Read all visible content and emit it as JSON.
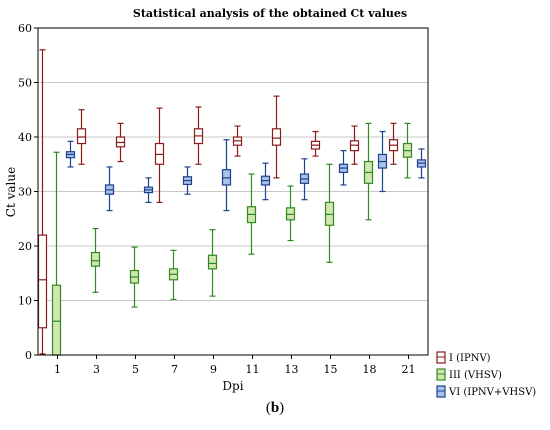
{
  "caption": "(b)",
  "chart_data": {
    "type": "box",
    "title": "Statistical analysis of the obtained Ct values",
    "xlabel": "Dpi",
    "ylabel": "Ct value",
    "ylim": [
      0,
      60
    ],
    "yticks": [
      0,
      10,
      20,
      30,
      40,
      50,
      60
    ],
    "grid": true,
    "legend_position": "bottom-right, outside plot",
    "categories": [
      "1",
      "3",
      "5",
      "7",
      "9",
      "11",
      "13",
      "15",
      "18",
      "21"
    ],
    "series": [
      {
        "name": "I (IPNV)",
        "color": "#8b1a1a",
        "fill": "#ffffff",
        "boxes": [
          {
            "min": 0.2,
            "q1": 5,
            "median": 13.8,
            "q3": 22,
            "max": 56
          },
          {
            "min": 35,
            "q1": 38.8,
            "median": 40,
            "q3": 41.5,
            "max": 45
          },
          {
            "min": 35.5,
            "q1": 38.2,
            "median": 39,
            "q3": 40,
            "max": 42.5
          },
          {
            "min": 28,
            "q1": 35,
            "median": 36.8,
            "q3": 38.8,
            "max": 45.3
          },
          {
            "min": 35,
            "q1": 38.8,
            "median": 40.2,
            "q3": 41.5,
            "max": 45.5
          },
          {
            "min": 36.5,
            "q1": 38.5,
            "median": 39.3,
            "q3": 40,
            "max": 42
          },
          {
            "min": 32.5,
            "q1": 38.5,
            "median": 39.8,
            "q3": 41.5,
            "max": 47.5
          },
          {
            "min": 36.5,
            "q1": 37.8,
            "median": 38.5,
            "q3": 39.2,
            "max": 41
          },
          {
            "min": 35,
            "q1": 37.5,
            "median": 38.5,
            "q3": 39.3,
            "max": 42
          },
          {
            "min": 35,
            "q1": 37.5,
            "median": 38.5,
            "q3": 39.5,
            "max": 42.5
          }
        ]
      },
      {
        "name": "III (VHSV)",
        "color": "#2e8b1f",
        "fill": "#d3e6b0",
        "boxes": [
          {
            "min": 0,
            "q1": 0,
            "median": 6.2,
            "q3": 12.8,
            "max": 37.2
          },
          {
            "min": 11.5,
            "q1": 16.3,
            "median": 17.3,
            "q3": 18.8,
            "max": 23.2
          },
          {
            "min": 8.8,
            "q1": 13.2,
            "median": 14.3,
            "q3": 15.5,
            "max": 19.8
          },
          {
            "min": 10.2,
            "q1": 13.8,
            "median": 14.8,
            "q3": 15.8,
            "max": 19.2
          },
          {
            "min": 10.8,
            "q1": 15.8,
            "median": 16.8,
            "q3": 18.3,
            "max": 23
          },
          {
            "min": 18.5,
            "q1": 24.3,
            "median": 25.8,
            "q3": 27.2,
            "max": 33.2
          },
          {
            "min": 21,
            "q1": 24.8,
            "median": 25.8,
            "q3": 27,
            "max": 31
          },
          {
            "min": 17,
            "q1": 23.8,
            "median": 25.8,
            "q3": 28,
            "max": 35
          },
          {
            "min": 24.8,
            "q1": 31.5,
            "median": 33.5,
            "q3": 35.5,
            "max": 42.5
          },
          {
            "min": 32.5,
            "q1": 36.3,
            "median": 37.5,
            "q3": 38.8,
            "max": 42.5
          }
        ]
      },
      {
        "name": "VI (IPNV+VHSV)",
        "color": "#1f3f8f",
        "fill": "#a9c2ea",
        "boxes": [
          {
            "min": 34.5,
            "q1": 36.2,
            "median": 36.8,
            "q3": 37.3,
            "max": 39.2
          },
          {
            "min": 26.5,
            "q1": 29.5,
            "median": 30.3,
            "q3": 31.2,
            "max": 34.5
          },
          {
            "min": 28,
            "q1": 29.8,
            "median": 30.3,
            "q3": 30.8,
            "max": 32.5
          },
          {
            "min": 29.5,
            "q1": 31.3,
            "median": 32,
            "q3": 32.7,
            "max": 34.5
          },
          {
            "min": 26.5,
            "q1": 31.2,
            "median": 32.5,
            "q3": 34,
            "max": 39.5
          },
          {
            "min": 28.5,
            "q1": 31.2,
            "median": 32,
            "q3": 32.8,
            "max": 35.2
          },
          {
            "min": 28.5,
            "q1": 31.5,
            "median": 32.3,
            "q3": 33.2,
            "max": 36
          },
          {
            "min": 31.2,
            "q1": 33.5,
            "median": 34.3,
            "q3": 35,
            "max": 37.5
          },
          {
            "min": 30,
            "q1": 34.3,
            "median": 35.5,
            "q3": 36.8,
            "max": 41
          },
          {
            "min": 32.5,
            "q1": 34.5,
            "median": 35.2,
            "q3": 35.8,
            "max": 37.8
          }
        ]
      }
    ]
  }
}
